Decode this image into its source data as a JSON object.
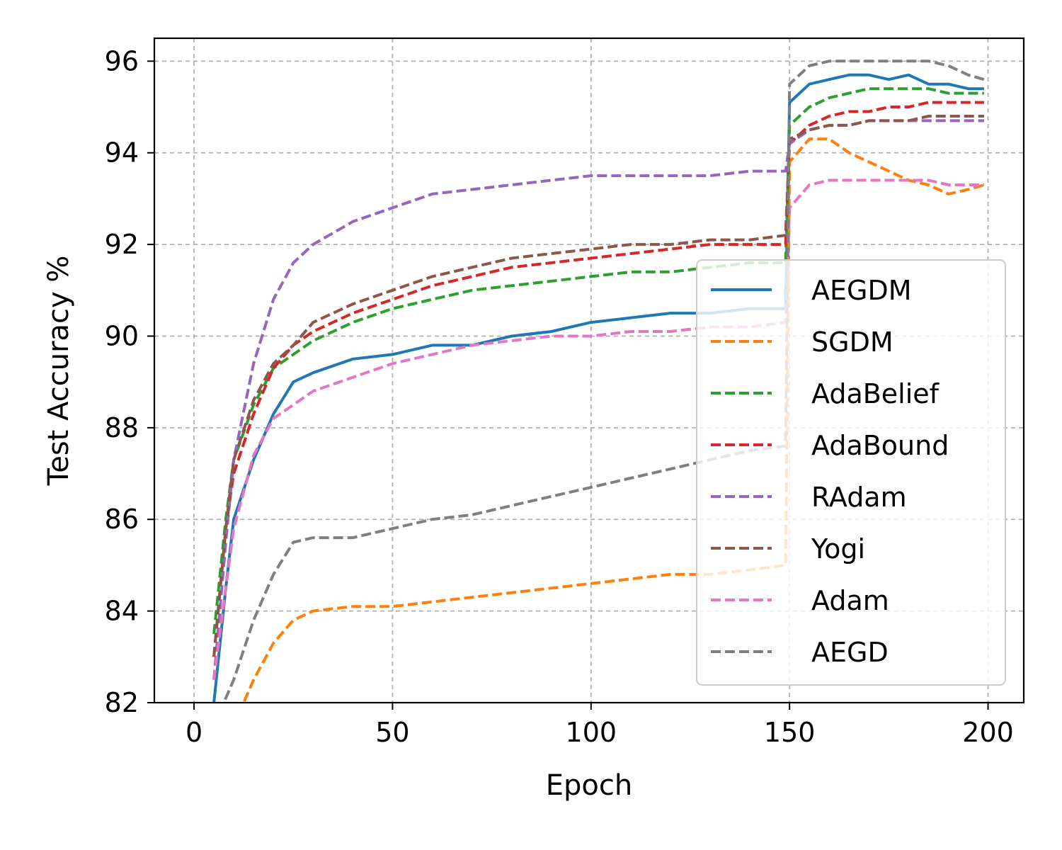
{
  "chart_data": {
    "type": "line",
    "title": "",
    "xlabel": "Epoch",
    "ylabel": "Test Accuracy %",
    "xlim": [
      -10,
      209
    ],
    "ylim": [
      82,
      96.5
    ],
    "xticks": [
      0,
      50,
      100,
      150,
      200
    ],
    "yticks": [
      82,
      84,
      86,
      88,
      90,
      92,
      94,
      96
    ],
    "grid": true,
    "legend_position": "lower-right",
    "series": [
      {
        "name": "AEGDM",
        "color": "#1f77b4",
        "dash": "solid",
        "x": [
          5,
          8,
          10,
          15,
          20,
          25,
          30,
          40,
          50,
          60,
          70,
          80,
          90,
          100,
          110,
          120,
          130,
          140,
          149,
          150,
          155,
          160,
          165,
          170,
          175,
          180,
          185,
          190,
          195,
          199
        ],
        "y": [
          82.0,
          84.5,
          86.0,
          87.3,
          88.3,
          89.0,
          89.2,
          89.5,
          89.6,
          89.8,
          89.8,
          90.0,
          90.1,
          90.3,
          90.4,
          90.5,
          90.5,
          90.6,
          90.6,
          95.1,
          95.5,
          95.6,
          95.7,
          95.7,
          95.6,
          95.7,
          95.5,
          95.5,
          95.4,
          95.4
        ]
      },
      {
        "name": "SGDM",
        "color": "#ff7f0e",
        "dash": "dashed",
        "x": [
          5,
          10,
          15,
          20,
          25,
          30,
          40,
          50,
          60,
          70,
          80,
          90,
          100,
          110,
          120,
          130,
          140,
          149,
          150,
          155,
          160,
          165,
          170,
          175,
          180,
          185,
          190,
          195,
          199
        ],
        "y": [
          81.0,
          81.5,
          82.5,
          83.3,
          83.8,
          84.0,
          84.1,
          84.1,
          84.2,
          84.3,
          84.4,
          84.5,
          84.6,
          84.7,
          84.8,
          84.8,
          84.9,
          85.0,
          93.8,
          94.3,
          94.3,
          94.0,
          93.8,
          93.6,
          93.4,
          93.3,
          93.1,
          93.2,
          93.3
        ]
      },
      {
        "name": "AdaBelief",
        "color": "#2ca02c",
        "dash": "dashed",
        "x": [
          5,
          8,
          10,
          15,
          20,
          25,
          30,
          40,
          50,
          60,
          70,
          80,
          90,
          100,
          110,
          120,
          130,
          140,
          149,
          150,
          155,
          160,
          165,
          170,
          175,
          180,
          185,
          190,
          195,
          199
        ],
        "y": [
          83.5,
          86.0,
          87.3,
          88.5,
          89.3,
          89.6,
          89.9,
          90.3,
          90.6,
          90.8,
          91.0,
          91.1,
          91.2,
          91.3,
          91.4,
          91.4,
          91.5,
          91.6,
          91.6,
          94.6,
          95.0,
          95.2,
          95.3,
          95.4,
          95.4,
          95.4,
          95.4,
          95.3,
          95.3,
          95.3
        ]
      },
      {
        "name": "AdaBound",
        "color": "#d62728",
        "dash": "dashed",
        "x": [
          5,
          8,
          10,
          15,
          20,
          25,
          30,
          40,
          50,
          60,
          70,
          80,
          90,
          100,
          110,
          120,
          130,
          140,
          149,
          150,
          155,
          160,
          165,
          170,
          175,
          180,
          185,
          190,
          195,
          199
        ],
        "y": [
          83.0,
          85.8,
          87.0,
          88.3,
          89.3,
          89.8,
          90.1,
          90.5,
          90.8,
          91.1,
          91.3,
          91.5,
          91.6,
          91.7,
          91.8,
          91.9,
          92.0,
          92.0,
          92.0,
          94.2,
          94.6,
          94.8,
          94.9,
          94.9,
          95.0,
          95.0,
          95.1,
          95.1,
          95.1,
          95.1
        ]
      },
      {
        "name": "RAdam",
        "color": "#9467bd",
        "dash": "dashed",
        "x": [
          5,
          8,
          10,
          15,
          20,
          25,
          30,
          40,
          50,
          60,
          70,
          80,
          90,
          100,
          110,
          120,
          130,
          140,
          149,
          150,
          155,
          160,
          165,
          170,
          175,
          180,
          185,
          190,
          195,
          199
        ],
        "y": [
          82.5,
          85.5,
          87.3,
          89.4,
          90.8,
          91.6,
          92.0,
          92.5,
          92.8,
          93.1,
          93.2,
          93.3,
          93.4,
          93.5,
          93.5,
          93.5,
          93.5,
          93.6,
          93.6,
          94.2,
          94.5,
          94.6,
          94.6,
          94.7,
          94.7,
          94.7,
          94.7,
          94.7,
          94.7,
          94.7
        ]
      },
      {
        "name": "Yogi",
        "color": "#8c564b",
        "dash": "dashed",
        "x": [
          5,
          8,
          10,
          15,
          20,
          25,
          30,
          40,
          50,
          60,
          70,
          80,
          90,
          100,
          110,
          120,
          130,
          140,
          149,
          150,
          155,
          160,
          165,
          170,
          175,
          180,
          185,
          190,
          195,
          199
        ],
        "y": [
          83.0,
          85.8,
          87.3,
          88.6,
          89.4,
          89.8,
          90.3,
          90.7,
          91.0,
          91.3,
          91.5,
          91.7,
          91.8,
          91.9,
          92.0,
          92.0,
          92.1,
          92.1,
          92.2,
          94.3,
          94.5,
          94.6,
          94.6,
          94.7,
          94.7,
          94.7,
          94.8,
          94.8,
          94.8,
          94.8
        ]
      },
      {
        "name": "Adam",
        "color": "#e377c2",
        "dash": "dashed",
        "x": [
          5,
          8,
          10,
          15,
          20,
          25,
          30,
          40,
          50,
          60,
          70,
          80,
          90,
          100,
          110,
          120,
          130,
          140,
          149,
          150,
          155,
          160,
          165,
          170,
          175,
          180,
          185,
          190,
          195,
          199
        ],
        "y": [
          82.5,
          84.5,
          85.8,
          87.4,
          88.2,
          88.5,
          88.8,
          89.1,
          89.4,
          89.6,
          89.8,
          89.9,
          90.0,
          90.0,
          90.1,
          90.1,
          90.2,
          90.2,
          90.3,
          92.8,
          93.3,
          93.4,
          93.4,
          93.4,
          93.4,
          93.4,
          93.4,
          93.3,
          93.3,
          93.3
        ]
      },
      {
        "name": "AEGD",
        "color": "#7f7f7f",
        "dash": "dashed",
        "x": [
          5,
          10,
          15,
          20,
          25,
          30,
          40,
          50,
          60,
          70,
          80,
          90,
          100,
          110,
          120,
          130,
          140,
          149,
          150,
          155,
          160,
          165,
          170,
          175,
          180,
          185,
          190,
          195,
          199
        ],
        "y": [
          81.5,
          82.5,
          83.8,
          84.8,
          85.5,
          85.6,
          85.6,
          85.8,
          86.0,
          86.1,
          86.3,
          86.5,
          86.7,
          86.9,
          87.1,
          87.3,
          87.5,
          87.6,
          95.5,
          95.9,
          96.0,
          96.0,
          96.0,
          96.0,
          96.0,
          96.0,
          95.9,
          95.7,
          95.6
        ]
      }
    ]
  }
}
